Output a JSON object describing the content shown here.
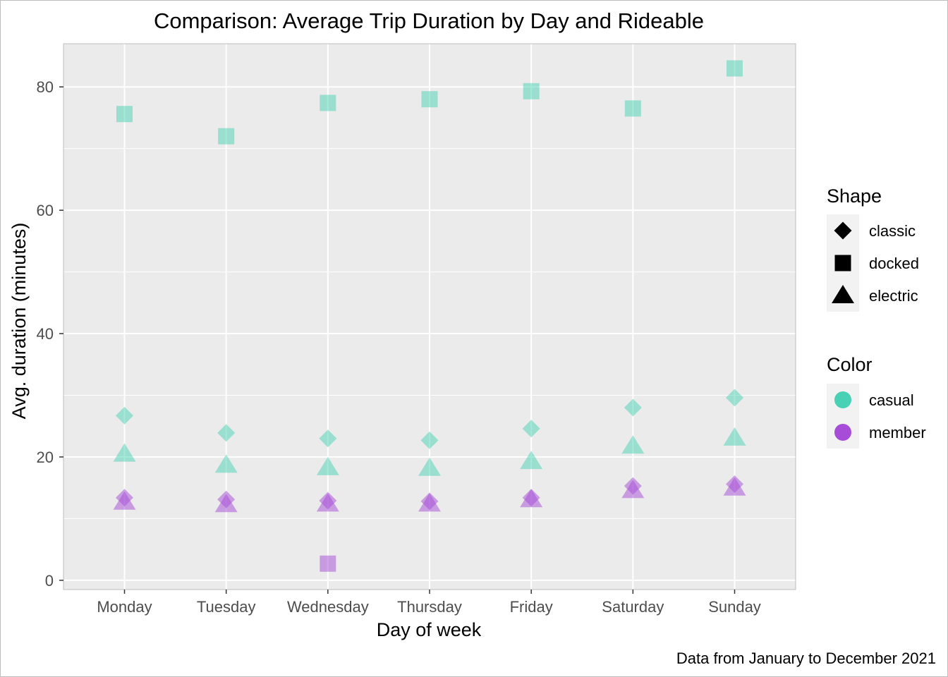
{
  "chart_data": {
    "type": "scatter",
    "title": "Comparison: Average Trip Duration by Day and Rideable",
    "xlabel": "Day of week",
    "ylabel": "Avg. duration (minutes)",
    "caption": "Data from January to December 2021",
    "categories": [
      "Monday",
      "Tuesday",
      "Wednesday",
      "Thursday",
      "Friday",
      "Saturday",
      "Sunday"
    ],
    "ylim": [
      -1.5,
      87
    ],
    "yticks": [
      0,
      20,
      40,
      60,
      80
    ],
    "grid": true,
    "colors": {
      "casual": "#48D1B4",
      "member": "#A64CD8"
    },
    "point_alpha": 0.5,
    "series": [
      {
        "shape": "classic",
        "color": "casual",
        "values": [
          26.7,
          23.9,
          23.0,
          22.7,
          24.6,
          28.0,
          29.6
        ]
      },
      {
        "shape": "docked",
        "color": "casual",
        "values": [
          75.6,
          72.0,
          77.4,
          78.0,
          79.3,
          76.5,
          83.0
        ]
      },
      {
        "shape": "electric",
        "color": "casual",
        "values": [
          20.5,
          18.7,
          18.3,
          18.2,
          19.3,
          21.8,
          23.1
        ]
      },
      {
        "shape": "classic",
        "color": "member",
        "values": [
          13.4,
          13.1,
          12.9,
          12.8,
          13.4,
          15.3,
          15.6
        ]
      },
      {
        "shape": "docked",
        "color": "member",
        "values": [
          null,
          null,
          2.7,
          null,
          null,
          null,
          null
        ]
      },
      {
        "shape": "electric",
        "color": "member",
        "values": [
          12.7,
          12.3,
          12.4,
          12.4,
          13.1,
          14.6,
          15.0
        ]
      }
    ],
    "legend": {
      "placement": "right",
      "shape_title": "Shape",
      "shape_items": [
        {
          "label": "classic",
          "shape": "classic"
        },
        {
          "label": "docked",
          "shape": "docked"
        },
        {
          "label": "electric",
          "shape": "electric"
        }
      ],
      "color_title": "Color",
      "color_items": [
        {
          "label": "casual",
          "color": "casual"
        },
        {
          "label": "member",
          "color": "member"
        }
      ]
    }
  }
}
